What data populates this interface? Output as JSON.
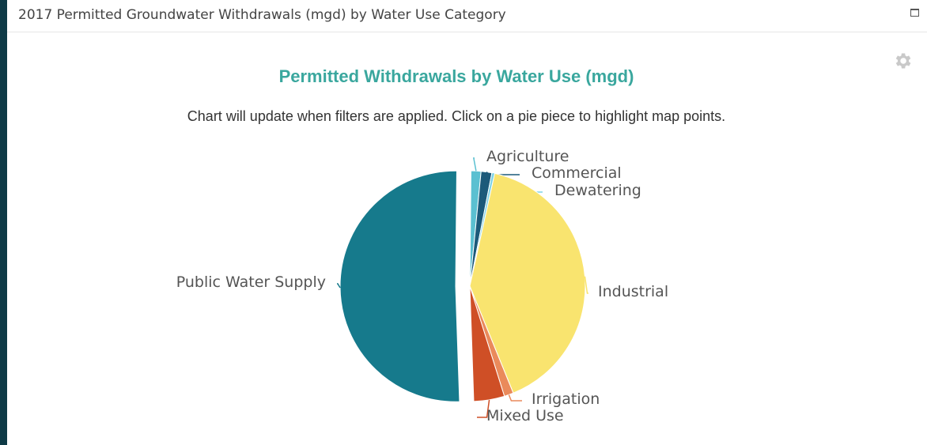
{
  "panel": {
    "title": "2017 Permitted Groundwater Withdrawals (mgd) by Water Use Category"
  },
  "icons": {
    "maximize": "maximize-icon",
    "settings": "gear-icon"
  },
  "chart_data": {
    "type": "pie",
    "title": "Permitted Withdrawals by Water Use (mgd)",
    "subtitle": "Chart will update when filters are applied. Click on a pie piece to highlight map points.",
    "slices": [
      {
        "label": "Agriculture",
        "value": 1.4,
        "color": "#5bc0d1"
      },
      {
        "label": "Commercial",
        "value": 1.5,
        "color": "#1c5a7a"
      },
      {
        "label": "Dewatering",
        "value": 0.4,
        "color": "#7fd3e6"
      },
      {
        "label": "Industrial",
        "value": 40.4,
        "color": "#f9e46f"
      },
      {
        "label": "Irrigation",
        "value": 1.3,
        "color": "#ea8a5b"
      },
      {
        "label": "Mixed Use",
        "value": 4.3,
        "color": "#cf4f26"
      },
      {
        "label": "Public Water Supply",
        "value": 50.7,
        "color": "#167a8c"
      }
    ],
    "exploded": "Public Water Supply"
  }
}
